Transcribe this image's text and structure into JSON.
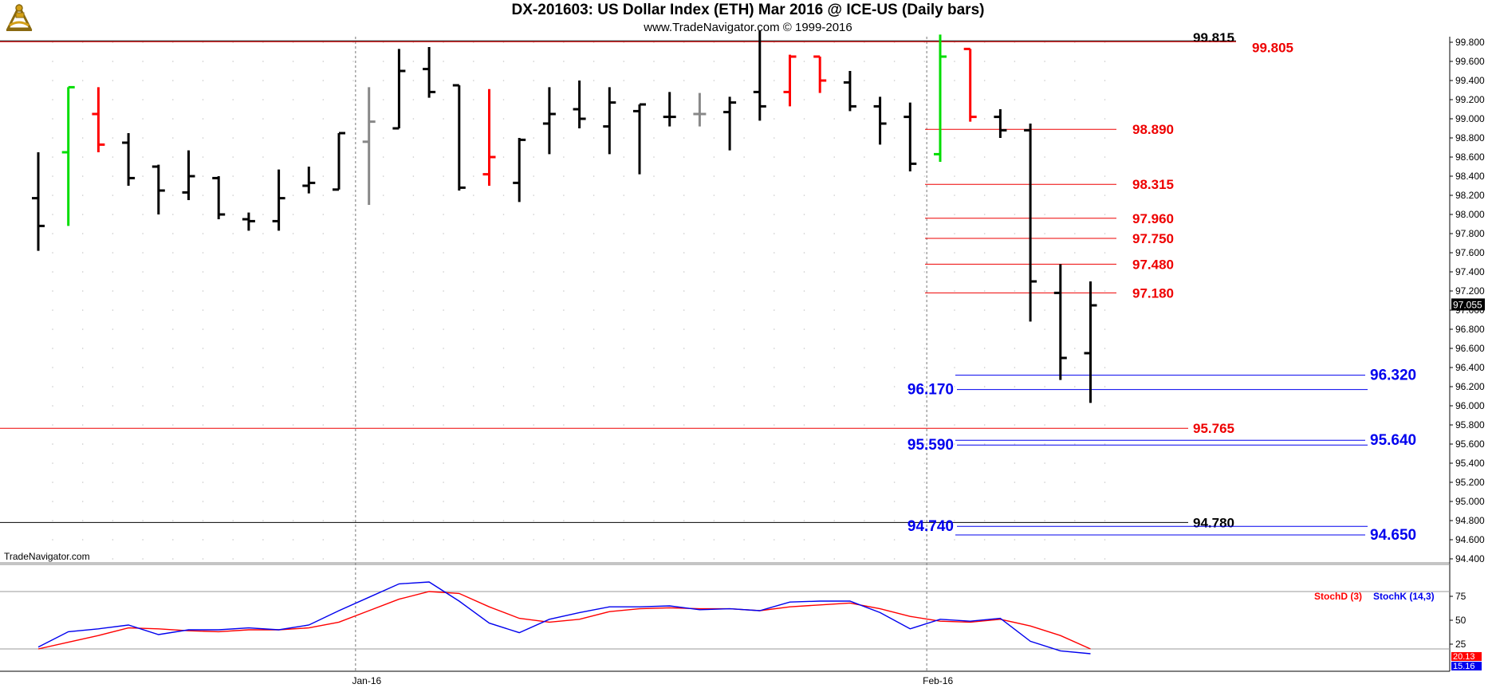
{
  "header": {
    "title": "DX-201603:  US Dollar Index (ETH) Mar 2016 @ ICE-US  (Daily bars)",
    "subtitle": "www.TradeNavigator.com © 1999-2016",
    "logo_icon": "sextant-icon"
  },
  "watermark": "TradeNavigator.com",
  "chart_data": [
    {
      "type": "ohlc",
      "title": "DX-201603:  US Dollar Index (ETH) Mar 2016 @ ICE-US  (Daily bars)",
      "ylim": [
        94.4,
        99.9
      ],
      "y_ticks": [
        "99.800",
        "99.600",
        "99.400",
        "99.200",
        "99.000",
        "98.800",
        "98.600",
        "98.400",
        "98.200",
        "98.000",
        "97.800",
        "97.600",
        "97.400",
        "97.200",
        "97.000",
        "96.800",
        "96.600",
        "96.400",
        "96.200",
        "96.000",
        "95.800",
        "95.600",
        "95.400",
        "95.200",
        "95.000",
        "94.800",
        "94.600",
        "94.400"
      ],
      "x_labels": [
        {
          "label": "Jan-16",
          "index": 10.5
        },
        {
          "label": "Feb-16",
          "index": 29.5
        }
      ],
      "last_price": "97.055",
      "colors": {
        "normal": "#000000",
        "up": "#00dd00",
        "down": "#ff0000",
        "neutral": "#888888",
        "red_level": "#ee0000",
        "blue_level": "#0000ee",
        "black_level": "#000000"
      },
      "bars": [
        {
          "o": 98.17,
          "h": 98.65,
          "l": 97.62,
          "c": 97.88,
          "color": "normal"
        },
        {
          "o": 98.65,
          "h": 99.33,
          "l": 97.88,
          "c": 99.33,
          "color": "up"
        },
        {
          "o": 99.05,
          "h": 99.33,
          "l": 98.65,
          "c": 98.73,
          "color": "down"
        },
        {
          "o": 98.75,
          "h": 98.85,
          "l": 98.3,
          "c": 98.38,
          "color": "normal"
        },
        {
          "o": 98.5,
          "h": 98.52,
          "l": 98.0,
          "c": 98.25,
          "color": "normal"
        },
        {
          "o": 98.23,
          "h": 98.67,
          "l": 98.15,
          "c": 98.4,
          "color": "normal"
        },
        {
          "o": 98.38,
          "h": 98.4,
          "l": 97.95,
          "c": 98.0,
          "color": "normal"
        },
        {
          "o": 97.95,
          "h": 98.02,
          "l": 97.83,
          "c": 97.93,
          "color": "normal"
        },
        {
          "o": 97.93,
          "h": 98.47,
          "l": 97.83,
          "c": 98.17,
          "color": "normal"
        },
        {
          "o": 98.3,
          "h": 98.5,
          "l": 98.22,
          "c": 98.33,
          "color": "normal"
        },
        {
          "o": 98.26,
          "h": 98.85,
          "l": 98.26,
          "c": 98.85,
          "color": "normal"
        },
        {
          "o": 98.76,
          "h": 99.33,
          "l": 98.1,
          "c": 98.97,
          "color": "neutral"
        },
        {
          "o": 98.9,
          "h": 99.73,
          "l": 98.9,
          "c": 99.5,
          "color": "normal"
        },
        {
          "o": 99.52,
          "h": 99.75,
          "l": 99.22,
          "c": 99.28,
          "color": "normal"
        },
        {
          "o": 99.35,
          "h": 99.35,
          "l": 98.25,
          "c": 98.28,
          "color": "normal"
        },
        {
          "o": 98.42,
          "h": 99.31,
          "l": 98.3,
          "c": 98.6,
          "color": "down"
        },
        {
          "o": 98.33,
          "h": 98.8,
          "l": 98.13,
          "c": 98.78,
          "color": "normal"
        },
        {
          "o": 98.95,
          "h": 99.33,
          "l": 98.63,
          "c": 99.05,
          "color": "normal"
        },
        {
          "o": 99.1,
          "h": 99.4,
          "l": 98.9,
          "c": 99.0,
          "color": "normal"
        },
        {
          "o": 98.92,
          "h": 99.33,
          "l": 98.63,
          "c": 99.17,
          "color": "normal"
        },
        {
          "o": 99.08,
          "h": 99.15,
          "l": 98.42,
          "c": 99.15,
          "color": "normal"
        },
        {
          "o": 99.02,
          "h": 99.28,
          "l": 98.92,
          "c": 99.02,
          "color": "normal"
        },
        {
          "o": 99.05,
          "h": 99.27,
          "l": 98.92,
          "c": 99.05,
          "color": "neutral"
        },
        {
          "o": 99.07,
          "h": 99.23,
          "l": 98.67,
          "c": 99.17,
          "color": "normal"
        },
        {
          "o": 99.28,
          "h": 99.92,
          "l": 98.98,
          "c": 99.13,
          "color": "normal"
        },
        {
          "o": 99.28,
          "h": 99.67,
          "l": 99.13,
          "c": 99.65,
          "color": "down"
        },
        {
          "o": 99.65,
          "h": 99.65,
          "l": 99.27,
          "c": 99.4,
          "color": "down"
        },
        {
          "o": 99.38,
          "h": 99.5,
          "l": 99.08,
          "c": 99.13,
          "color": "normal"
        },
        {
          "o": 99.13,
          "h": 99.23,
          "l": 98.73,
          "c": 98.95,
          "color": "normal"
        },
        {
          "o": 99.02,
          "h": 99.17,
          "l": 98.45,
          "c": 98.53,
          "color": "normal"
        },
        {
          "o": 98.63,
          "h": 99.88,
          "l": 98.55,
          "c": 99.65,
          "color": "up"
        },
        {
          "o": 99.73,
          "h": 99.73,
          "l": 98.97,
          "c": 99.02,
          "color": "down"
        },
        {
          "o": 99.02,
          "h": 99.1,
          "l": 98.8,
          "c": 98.88,
          "color": "normal"
        },
        {
          "o": 98.88,
          "h": 98.95,
          "l": 96.88,
          "c": 97.3,
          "color": "normal"
        },
        {
          "o": 97.18,
          "h": 97.48,
          "l": 96.27,
          "c": 96.5,
          "color": "normal"
        },
        {
          "o": 96.55,
          "h": 97.3,
          "l": 96.03,
          "c": 97.05,
          "color": "normal"
        }
      ],
      "levels": [
        {
          "value": 99.815,
          "label": "99.815",
          "color": "black_level"
        },
        {
          "value": 99.805,
          "label": "99.805",
          "color": "red_level"
        },
        {
          "value": 98.89,
          "label": "98.890",
          "color": "red_level"
        },
        {
          "value": 98.315,
          "label": "98.315",
          "color": "red_level"
        },
        {
          "value": 97.96,
          "label": "97.960",
          "color": "red_level"
        },
        {
          "value": 97.75,
          "label": "97.750",
          "color": "red_level"
        },
        {
          "value": 97.48,
          "label": "97.480",
          "color": "red_level"
        },
        {
          "value": 97.18,
          "label": "97.180",
          "color": "red_level"
        },
        {
          "value": 96.32,
          "label": "96.320",
          "color": "blue_level"
        },
        {
          "value": 96.17,
          "label": "96.170",
          "color": "blue_level"
        },
        {
          "value": 95.765,
          "label": "95.765",
          "color": "red_level"
        },
        {
          "value": 95.64,
          "label": "95.640",
          "color": "blue_level"
        },
        {
          "value": 95.59,
          "label": "95.590",
          "color": "blue_level"
        },
        {
          "value": 94.78,
          "label": "94.780",
          "color": "black_level"
        },
        {
          "value": 94.74,
          "label": "94.740",
          "color": "blue_level"
        },
        {
          "value": 94.65,
          "label": "94.650",
          "color": "blue_level"
        }
      ]
    },
    {
      "type": "line",
      "title": "",
      "ylim": [
        0,
        100
      ],
      "y_ticks": [
        "75",
        "50",
        "25"
      ],
      "reference_lines": [
        80,
        20
      ],
      "series": [
        {
          "name": "StochD (3)",
          "color": "#ff0000",
          "last_label": "20.13",
          "values": [
            20,
            27,
            34,
            42,
            41,
            39,
            38,
            40,
            40,
            42,
            48,
            60,
            72,
            80,
            78,
            64,
            52,
            48,
            51,
            59,
            62,
            63,
            62,
            62,
            60,
            64,
            66,
            68,
            62,
            54,
            49,
            48,
            51,
            44,
            34,
            20
          ]
        },
        {
          "name": "StochK (14,3)",
          "color": "#0000ee",
          "last_label": "15.16",
          "values": [
            22,
            38,
            41,
            45,
            35,
            40,
            40,
            42,
            40,
            45,
            60,
            74,
            88,
            90,
            70,
            47,
            37,
            51,
            58,
            64,
            64,
            65,
            61,
            62,
            60,
            69,
            70,
            70,
            58,
            41,
            51,
            49,
            52,
            28,
            18,
            15
          ]
        }
      ]
    }
  ]
}
